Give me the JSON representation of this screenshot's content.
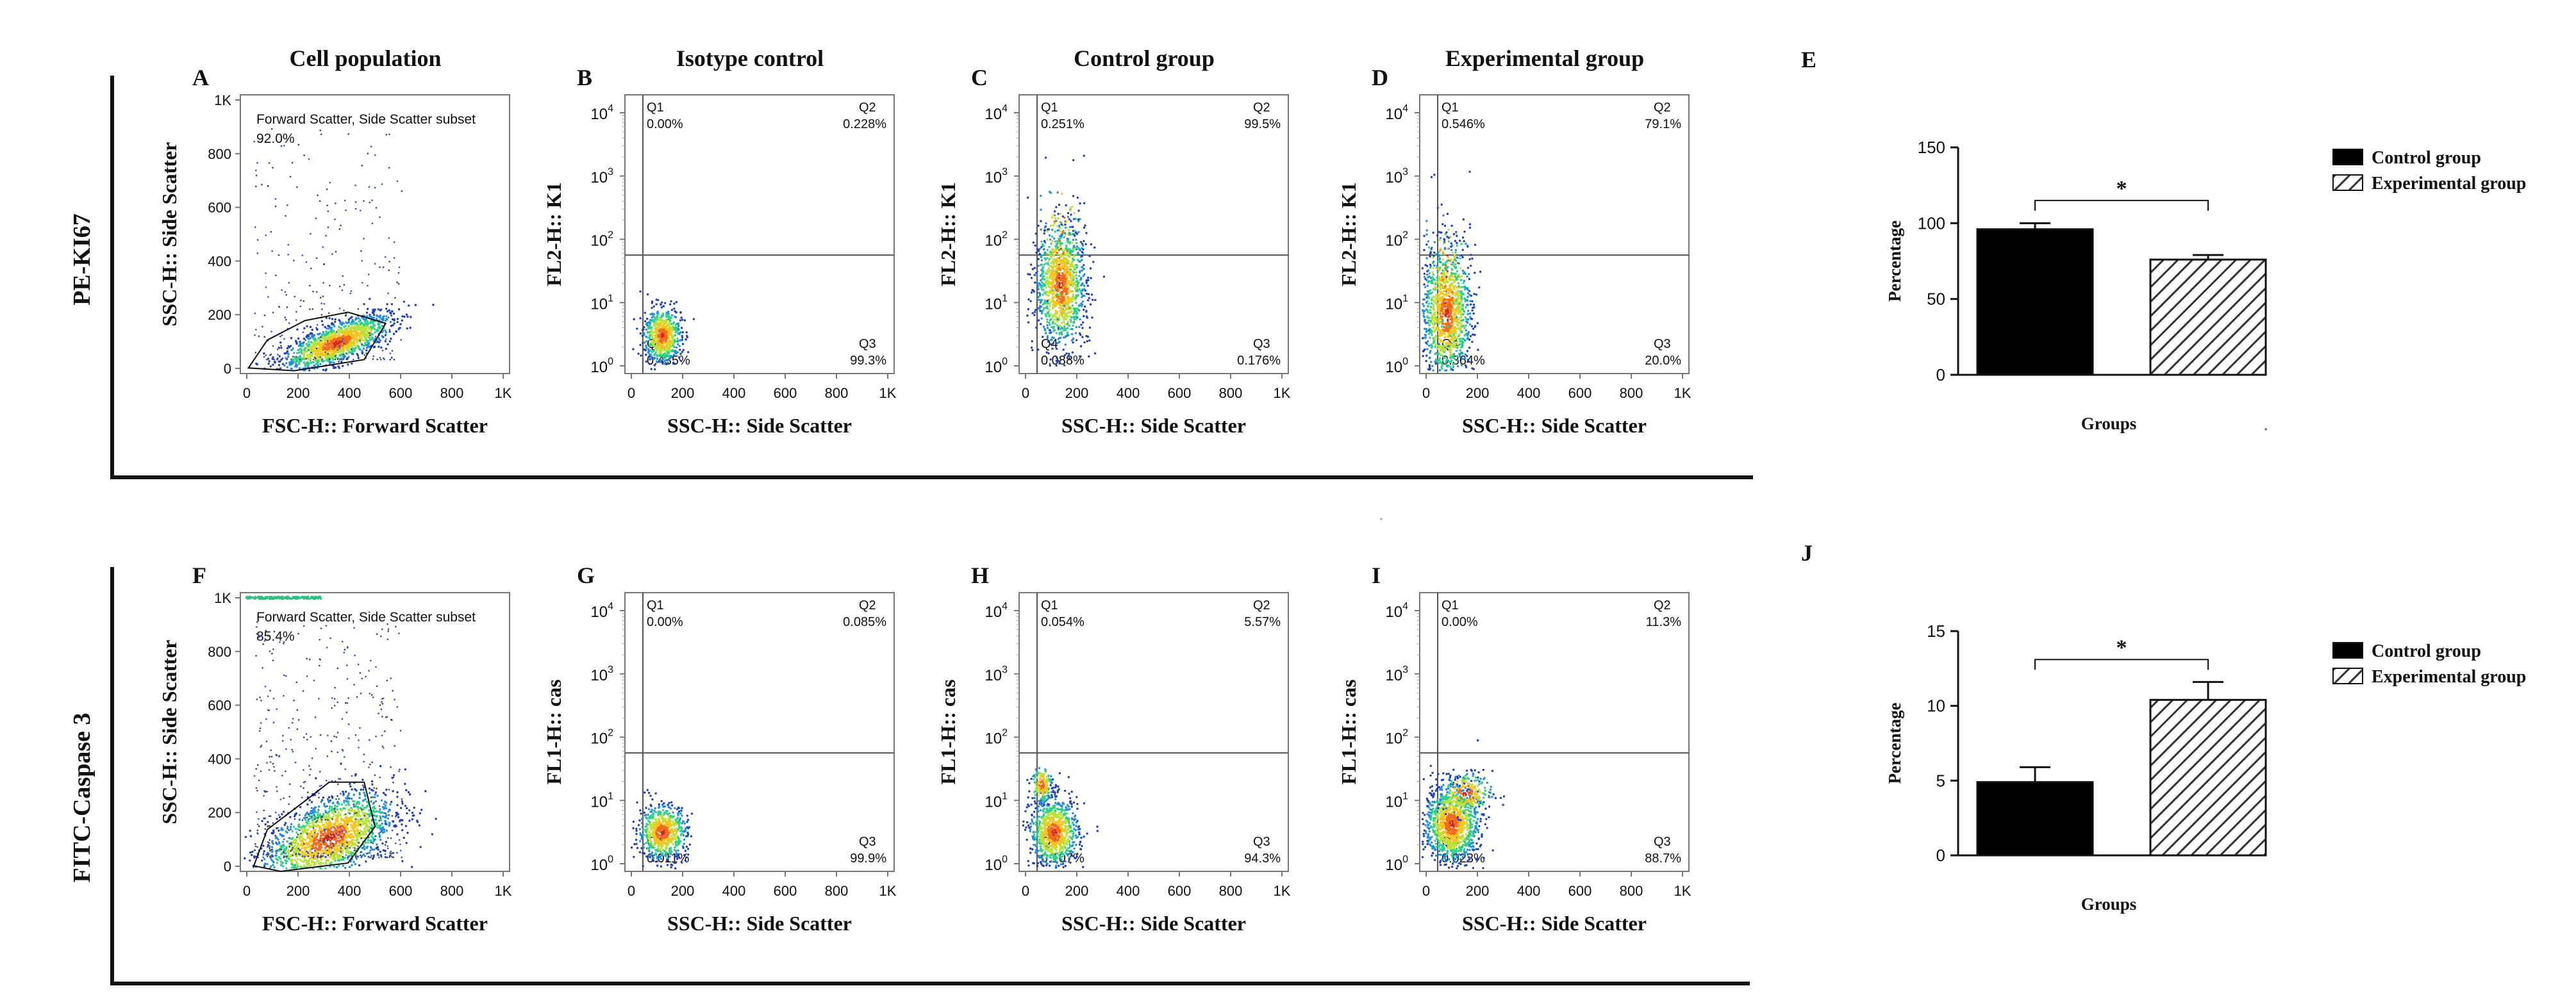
{
  "rows": [
    {
      "row_label": "PE-KI67",
      "panels": [
        {
          "letter": "A",
          "title": "Cell population",
          "type": "fsc_ssc",
          "xlabel": "FSC-H:: Forward Scatter",
          "ylabel": "SSC-H:: Side Scatter",
          "x_ticks": [
            "0",
            "200",
            "400",
            "600",
            "800",
            "1K"
          ],
          "y_ticks": [
            "0",
            "200",
            "400",
            "600",
            "800",
            "1K"
          ],
          "gate_name": "Forward Scatter, Side Scatter subset",
          "gate_pct": "92.0%"
        },
        {
          "letter": "B",
          "title": "Isotype control",
          "type": "quadrant",
          "xlabel": "SSC-H:: Side Scatter",
          "ylabel": "FL2-H:: K1",
          "x_ticks": [
            "0",
            "200",
            "400",
            "600",
            "800",
            "1K"
          ],
          "y_exps": [
            "0",
            "1",
            "2",
            "3",
            "4"
          ],
          "q1": "0.00%",
          "q2": "0.228%",
          "q3": "99.3%",
          "q4": "0.435%"
        },
        {
          "letter": "C",
          "title": "Control group",
          "type": "quadrant",
          "xlabel": "SSC-H:: Side Scatter",
          "ylabel": "FL2-H:: K1",
          "x_ticks": [
            "0",
            "200",
            "400",
            "600",
            "800",
            "1K"
          ],
          "y_exps": [
            "0",
            "1",
            "2",
            "3",
            "4"
          ],
          "q1": "0.251%",
          "q2": "99.5%",
          "q3": "0.176%",
          "q4": "0.088%"
        },
        {
          "letter": "D",
          "title": "Experimental group",
          "type": "quadrant",
          "xlabel": "SSC-H:: Side Scatter",
          "ylabel": "FL2-H:: K1",
          "x_ticks": [
            "0",
            "200",
            "400",
            "600",
            "800",
            "1K"
          ],
          "y_exps": [
            "0",
            "1",
            "2",
            "3",
            "4"
          ],
          "q1": "0.546%",
          "q2": "79.1%",
          "q3": "20.0%",
          "q4": "0.364%"
        }
      ]
    },
    {
      "row_label": "FITC-Caspase 3",
      "panels": [
        {
          "letter": "F",
          "title": "",
          "type": "fsc_ssc",
          "xlabel": "FSC-H:: Forward Scatter",
          "ylabel": "SSC-H:: Side Scatter",
          "x_ticks": [
            "0",
            "200",
            "400",
            "600",
            "800",
            "1K"
          ],
          "y_ticks": [
            "0",
            "200",
            "400",
            "600",
            "800",
            "1K"
          ],
          "gate_name": "Forward Scatter, Side Scatter subset",
          "gate_pct": "85.4%"
        },
        {
          "letter": "G",
          "title": "",
          "type": "quadrant",
          "xlabel": "SSC-H:: Side Scatter",
          "ylabel": "FL1-H:: cas",
          "x_ticks": [
            "0",
            "200",
            "400",
            "600",
            "800",
            "1K"
          ],
          "y_exps": [
            "0",
            "1",
            "2",
            "3",
            "4"
          ],
          "q1": "0.00%",
          "q2": "0.085%",
          "q3": "99.9%",
          "q4": "0.011%"
        },
        {
          "letter": "H",
          "title": "",
          "type": "quadrant",
          "xlabel": "SSC-H:: Side Scatter",
          "ylabel": "FL1-H:: cas",
          "x_ticks": [
            "0",
            "200",
            "400",
            "600",
            "800",
            "1K"
          ],
          "y_exps": [
            "0",
            "1",
            "2",
            "3",
            "4"
          ],
          "q1": "0.054%",
          "q2": "5.57%",
          "q3": "94.3%",
          "q4": "0.107%"
        },
        {
          "letter": "I",
          "title": "",
          "type": "quadrant",
          "xlabel": "SSC-H:: Side Scatter",
          "ylabel": "FL1-H:: cas",
          "x_ticks": [
            "0",
            "200",
            "400",
            "600",
            "800",
            "1K"
          ],
          "y_exps": [
            "0",
            "1",
            "2",
            "3",
            "4"
          ],
          "q1": "0.00%",
          "q2": "11.3%",
          "q3": "88.7%",
          "q4": "0.023%"
        }
      ]
    }
  ],
  "colors": {
    "dots": [
      "#1d3fc4",
      "#1f8de0",
      "#2fcf8a",
      "#b8e23a",
      "#f5c51c",
      "#f26a1b",
      "#d8231c"
    ],
    "bar_control": "#000000",
    "bar_hatch": "#333333"
  },
  "chart_data": [
    {
      "letter": "E",
      "type": "bar",
      "title": "",
      "xlabel": "Groups",
      "ylabel": "Percentage",
      "categories": [
        "Control group",
        "Experimental group"
      ],
      "values": [
        96,
        76
      ],
      "errors": [
        4,
        3
      ],
      "ylim": [
        0,
        150
      ],
      "yticks": [
        "0",
        "50",
        "100",
        "150"
      ],
      "significance": "*",
      "legend": [
        "Control group",
        "Experimental group"
      ],
      "legend_position": "right"
    },
    {
      "letter": "J",
      "type": "bar",
      "title": "",
      "xlabel": "Groups",
      "ylabel": "Percentage",
      "categories": [
        "Control group",
        "Experimental group"
      ],
      "values": [
        4.9,
        10.4
      ],
      "errors": [
        1.0,
        1.2
      ],
      "ylim": [
        0,
        15
      ],
      "yticks": [
        "0",
        "5",
        "10",
        "15"
      ],
      "significance": "*",
      "legend": [
        "Control group",
        "Experimental group"
      ],
      "legend_position": "right"
    }
  ]
}
